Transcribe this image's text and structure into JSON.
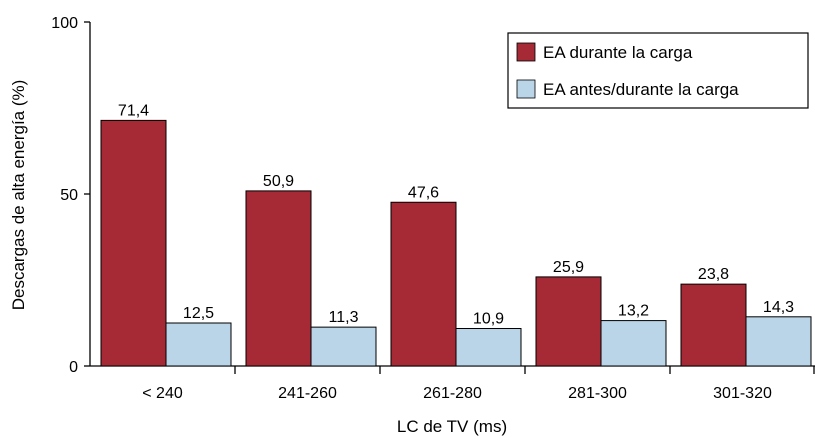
{
  "chart_data": {
    "type": "bar",
    "categories": [
      "< 240",
      "241-260",
      "261-280",
      "281-300",
      "301-320"
    ],
    "series": [
      {
        "name": "EA durante la carga",
        "values": [
          71.4,
          50.9,
          47.6,
          25.9,
          23.8
        ],
        "labels": [
          "71,4",
          "50,9",
          "47,6",
          "25,9",
          "23,8"
        ],
        "color": "#a52a35"
      },
      {
        "name": "EA antes/durante la carga",
        "values": [
          12.5,
          11.3,
          10.9,
          13.2,
          14.3
        ],
        "labels": [
          "12,5",
          "11,3",
          "10,9",
          "13,2",
          "14,3"
        ],
        "color": "#bad5e8"
      }
    ],
    "xlabel": "LC de TV (ms)",
    "ylabel": "Descargas de alta energía (%)",
    "ylim": [
      0,
      100
    ],
    "yticks": [
      0,
      50,
      100
    ],
    "grid": false,
    "legend_position": "top-right"
  }
}
